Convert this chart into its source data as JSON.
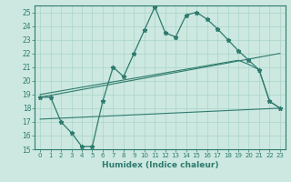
{
  "xlabel": "Humidex (Indice chaleur)",
  "background_color": "#cce8e0",
  "line_color": "#2e7b6e",
  "grid_color": "#aad4c8",
  "xlim": [
    -0.5,
    23.5
  ],
  "ylim": [
    15,
    25.5
  ],
  "xticks": [
    0,
    1,
    2,
    3,
    4,
    5,
    6,
    7,
    8,
    9,
    10,
    11,
    12,
    13,
    14,
    15,
    16,
    17,
    18,
    19,
    20,
    21,
    22,
    23
  ],
  "yticks": [
    15,
    16,
    17,
    18,
    19,
    20,
    21,
    22,
    23,
    24,
    25
  ],
  "series1_x": [
    0,
    1,
    2,
    3,
    4,
    5,
    6,
    7,
    8,
    9,
    10,
    11,
    12,
    13,
    14,
    15,
    16,
    17,
    18,
    19,
    20,
    21,
    22,
    23
  ],
  "series1_y": [
    18.8,
    18.8,
    17.0,
    16.2,
    15.2,
    15.2,
    18.5,
    21.0,
    20.3,
    22.0,
    23.7,
    25.4,
    23.5,
    23.2,
    24.8,
    25.0,
    24.5,
    23.8,
    23.0,
    22.2,
    21.5,
    20.8,
    18.5,
    18.0
  ],
  "series2_x": [
    0,
    19,
    20,
    21,
    22,
    23
  ],
  "series2_y": [
    19.0,
    21.5,
    21.2,
    20.8,
    18.5,
    18.0
  ],
  "series3_x": [
    0,
    23
  ],
  "series3_y": [
    18.8,
    22.0
  ],
  "series4_x": [
    0,
    23
  ],
  "series4_y": [
    17.2,
    18.0
  ]
}
